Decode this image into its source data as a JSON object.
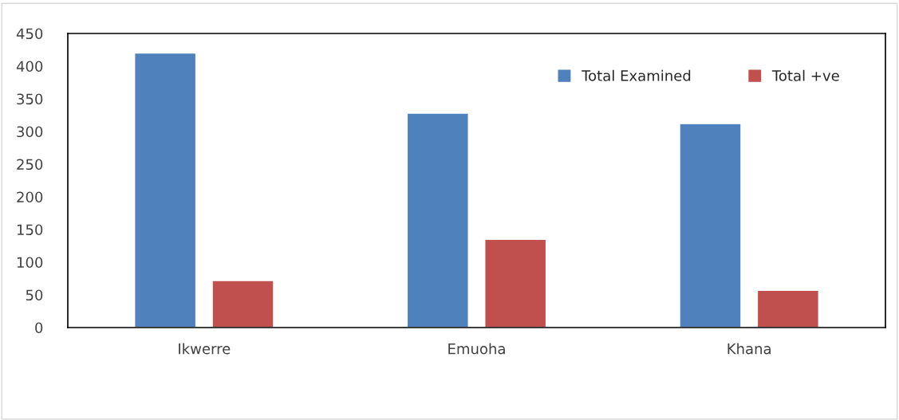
{
  "chart_data": {
    "type": "bar",
    "categories": [
      "Ikwerre",
      "Emuoha",
      "Khana"
    ],
    "series": [
      {
        "name": "Total Examined",
        "color": "#4f81bd",
        "values": [
          420,
          328,
          312
        ]
      },
      {
        "name": "Total +ve",
        "color": "#c0504d",
        "values": [
          72,
          135,
          57
        ]
      }
    ],
    "ylim": [
      0,
      450
    ],
    "yticks": [
      0,
      50,
      100,
      150,
      200,
      250,
      300,
      350,
      400,
      450
    ],
    "grid": false,
    "legend": "top right"
  }
}
